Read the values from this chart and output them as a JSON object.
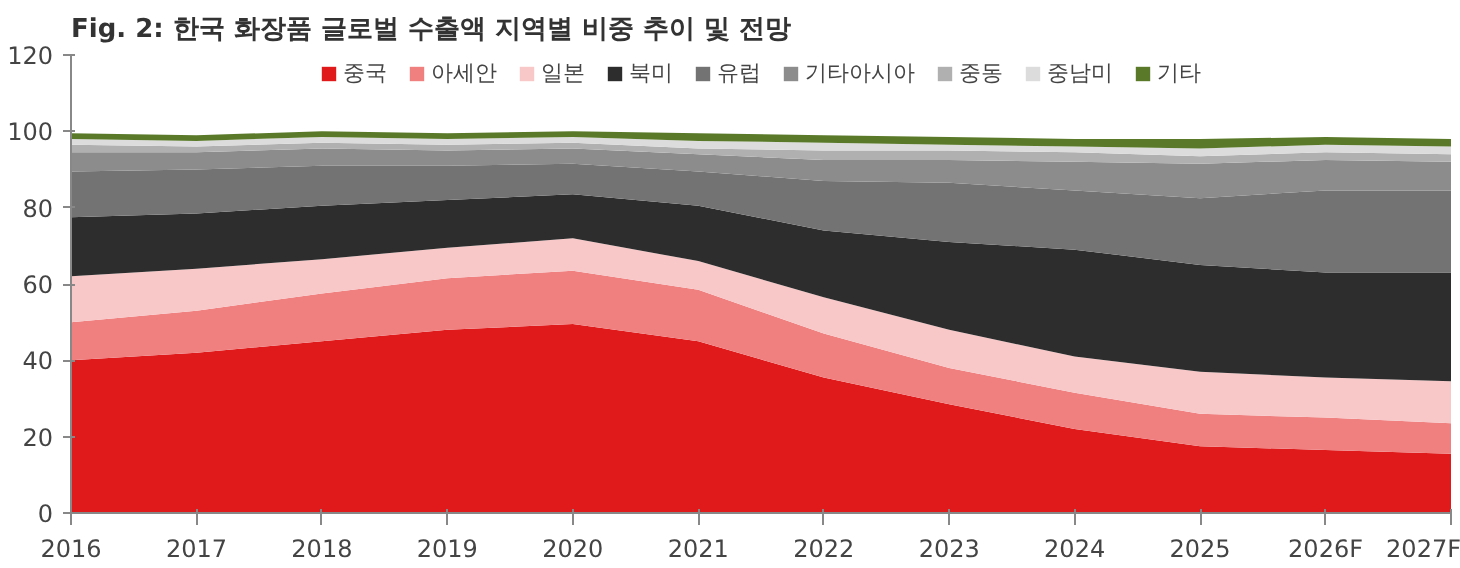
{
  "chart_data": {
    "type": "area",
    "stacked": true,
    "title": "Fig. 2: 한국 화장품 글로벌 수출액 지역별 비중 추이 및 전망",
    "categories": [
      "2016",
      "2017",
      "2018",
      "2019",
      "2020",
      "2021",
      "2022",
      "2023",
      "2024",
      "2025",
      "2026F",
      "2027F"
    ],
    "ylim": [
      0,
      120
    ],
    "yticks": [
      0,
      20,
      40,
      60,
      80,
      100,
      120
    ],
    "grid": false,
    "legend": "top",
    "series": [
      {
        "name": "중국",
        "color": "#e01a1a",
        "values": [
          40,
          42,
          45,
          48,
          49.5,
          45,
          35.5,
          28.5,
          22,
          17.5,
          16.5,
          15.5
        ]
      },
      {
        "name": "아세안",
        "color": "#f08080",
        "values": [
          10,
          11,
          12.5,
          13.5,
          14,
          13.5,
          11.5,
          9.5,
          9.5,
          8.5,
          8.5,
          8
        ]
      },
      {
        "name": "일본",
        "color": "#f8c8c8",
        "values": [
          12,
          11,
          9,
          8,
          8.5,
          7.5,
          9.5,
          10,
          9.5,
          11,
          10.5,
          11
        ]
      },
      {
        "name": "북미",
        "color": "#2d2d2d",
        "values": [
          15.5,
          14.5,
          14,
          12.5,
          11.5,
          14.5,
          17.5,
          23,
          28,
          28,
          27.5,
          28.5
        ]
      },
      {
        "name": "유럽",
        "color": "#737373",
        "values": [
          12,
          11.5,
          10.5,
          9,
          8,
          9,
          13,
          15.5,
          15.5,
          17.5,
          21.5,
          21.5
        ]
      },
      {
        "name": "기타아시아",
        "color": "#8c8c8c",
        "values": [
          5,
          4.5,
          4.5,
          4,
          4,
          4.5,
          5.5,
          6,
          7.5,
          9,
          8,
          7.5
        ]
      },
      {
        "name": "중동",
        "color": "#b0b0b0",
        "values": [
          2,
          1.5,
          1.5,
          1.5,
          1.5,
          1.5,
          2.5,
          2.5,
          2.5,
          2,
          2,
          2
        ]
      },
      {
        "name": "중남미",
        "color": "#dcdcdc",
        "values": [
          1.5,
          1.5,
          1.5,
          1.5,
          1.5,
          2,
          2,
          1.5,
          1.5,
          2,
          2,
          2
        ]
      },
      {
        "name": "기타",
        "color": "#5a7a2a",
        "values": [
          1.5,
          1.5,
          1.5,
          1.5,
          1.5,
          2,
          2,
          2,
          2,
          2.5,
          2,
          2
        ]
      }
    ]
  }
}
